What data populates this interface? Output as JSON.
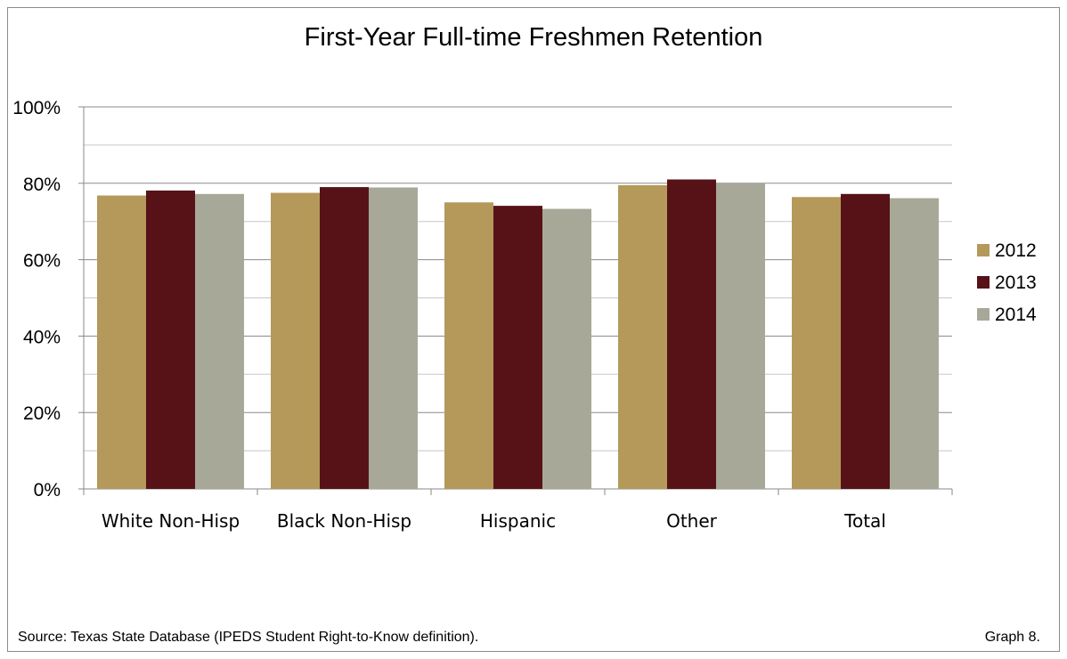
{
  "chart_data": {
    "type": "bar",
    "title": "First-Year Full-time Freshmen Retention",
    "categories": [
      "White Non-Hisp",
      "Black Non-Hisp",
      "Hispanic",
      "Other",
      "Total"
    ],
    "series": [
      {
        "name": "2012",
        "color": "#b5995a",
        "values": [
          76.8,
          77.5,
          75.0,
          79.5,
          76.4
        ]
      },
      {
        "name": "2013",
        "color": "#561217",
        "values": [
          78.1,
          79.0,
          74.1,
          81.0,
          77.2
        ]
      },
      {
        "name": "2014",
        "color": "#a8a898",
        "values": [
          77.2,
          78.9,
          73.3,
          80.0,
          76.1
        ]
      }
    ],
    "yticks": [
      "0%",
      "20%",
      "40%",
      "60%",
      "80%",
      "100%"
    ],
    "ylim": [
      0,
      100
    ],
    "grid": true,
    "legend": "right"
  },
  "footer": {
    "source": "Source: Texas State Database (IPEDS Student Right-to-Know definition).",
    "graph_label": "Graph 8."
  }
}
